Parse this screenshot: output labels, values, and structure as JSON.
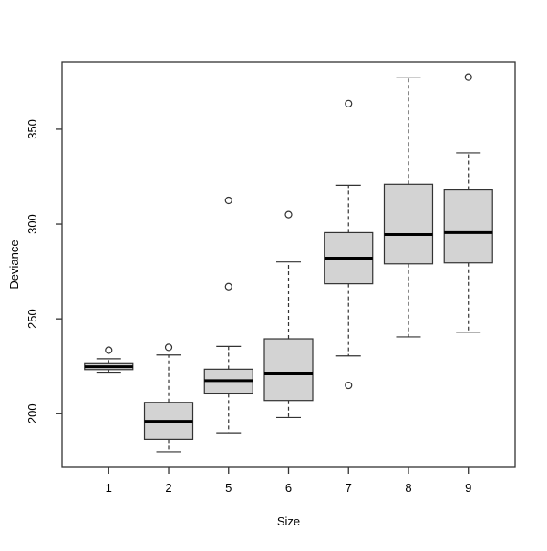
{
  "chart_data": {
    "type": "boxplot",
    "title": "",
    "xlabel": "Size",
    "ylabel": "Deviance",
    "categories": [
      "1",
      "2",
      "5",
      "6",
      "7",
      "8",
      "9"
    ],
    "y_ticks": [
      200,
      250,
      300,
      350
    ],
    "ylim": [
      171.8,
      385.5
    ],
    "xlim": [
      0.22,
      7.78
    ],
    "grid": false,
    "legend": "none",
    "boxes": [
      {
        "category": "1",
        "whisker_low": 221.5,
        "q1": 223.3,
        "median": 224.8,
        "q3": 226.4,
        "whisker_high": 229,
        "outliers": [
          233.5
        ]
      },
      {
        "category": "2",
        "whisker_low": 180,
        "q1": 186.5,
        "median": 196,
        "q3": 206,
        "whisker_high": 231,
        "outliers": [
          235
        ]
      },
      {
        "category": "5",
        "whisker_low": 190,
        "q1": 210.5,
        "median": 217.5,
        "q3": 223.5,
        "whisker_high": 235.5,
        "outliers": [
          267,
          312.5
        ]
      },
      {
        "category": "6",
        "whisker_low": 198,
        "q1": 207,
        "median": 221,
        "q3": 239.5,
        "whisker_high": 280,
        "outliers": [
          305
        ]
      },
      {
        "category": "7",
        "whisker_low": 230.5,
        "q1": 268.5,
        "median": 282,
        "q3": 295.5,
        "whisker_high": 320.5,
        "outliers": [
          215,
          363.5
        ]
      },
      {
        "category": "8",
        "whisker_low": 240.5,
        "q1": 279,
        "median": 294.5,
        "q3": 321,
        "whisker_high": 377.5,
        "outliers": []
      },
      {
        "category": "9",
        "whisker_low": 243,
        "q1": 279.5,
        "median": 295.5,
        "q3": 318,
        "whisker_high": 337.5,
        "outliers": [
          377.5
        ]
      }
    ],
    "style": {
      "box_fill": "#d3d3d3",
      "line_color": "#333333",
      "median_color": "#000000",
      "background": "#ffffff",
      "axis_color": "#333333"
    }
  }
}
